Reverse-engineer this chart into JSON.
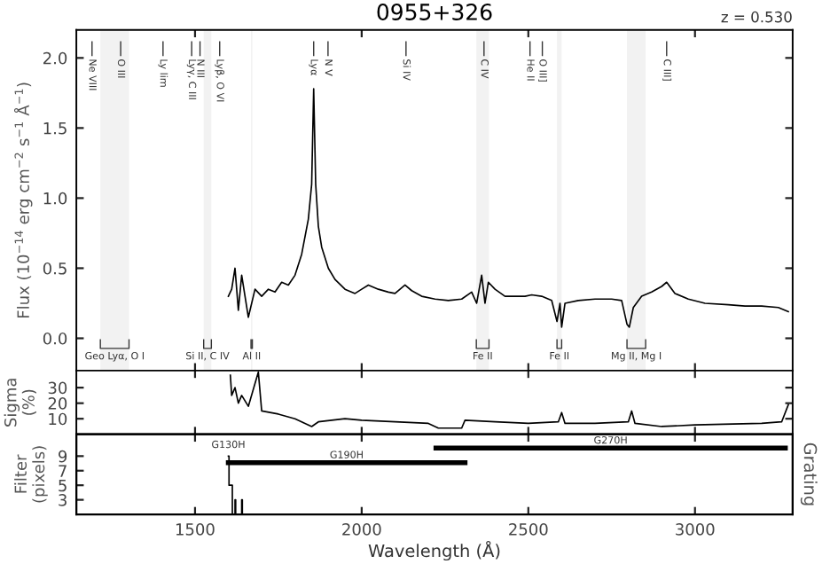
{
  "chart_data": [
    {
      "type": "line",
      "title": "0955+326",
      "ylabel": "Flux (10$^{−14}$ erg cm$^{−2}$ s$^{−1}$ Å$^{−1}$)",
      "series": [
        {
          "color": "#000000",
          "x": [
            1600,
            1610,
            1620,
            1630,
            1640,
            1650,
            1660,
            1680,
            1700,
            1720,
            1740,
            1760,
            1780,
            1800,
            1820,
            1840,
            1850,
            1856,
            1862,
            1870,
            1880,
            1900,
            1920,
            1950,
            1980,
            2000,
            2020,
            2050,
            2080,
            2100,
            2130,
            2150,
            2180,
            2220,
            2260,
            2300,
            2330,
            2345,
            2360,
            2370,
            2380,
            2400,
            2430,
            2460,
            2490,
            2510,
            2540,
            2570,
            2586,
            2595,
            2600,
            2610,
            2650,
            2700,
            2750,
            2780,
            2796,
            2803,
            2815,
            2840,
            2870,
            2900,
            2915,
            2940,
            2980,
            3030,
            3100,
            3150,
            3200,
            3250,
            3280
          ],
          "values": [
            0.3,
            0.35,
            0.5,
            0.2,
            0.45,
            0.3,
            0.15,
            0.35,
            0.3,
            0.35,
            0.33,
            0.4,
            0.38,
            0.45,
            0.6,
            0.85,
            1.1,
            1.78,
            1.1,
            0.8,
            0.65,
            0.5,
            0.42,
            0.35,
            0.32,
            0.35,
            0.38,
            0.35,
            0.33,
            0.32,
            0.38,
            0.34,
            0.3,
            0.28,
            0.27,
            0.28,
            0.33,
            0.25,
            0.45,
            0.25,
            0.4,
            0.35,
            0.3,
            0.3,
            0.3,
            0.31,
            0.3,
            0.27,
            0.12,
            0.25,
            0.08,
            0.25,
            0.27,
            0.28,
            0.28,
            0.27,
            0.1,
            0.08,
            0.22,
            0.3,
            0.33,
            0.37,
            0.4,
            0.32,
            0.28,
            0.25,
            0.24,
            0.23,
            0.23,
            0.22,
            0.19
          ]
        }
      ],
      "xlim": [
        1144,
        3293
      ],
      "xticks": [
        {
          "value": 1500,
          "label": null
        },
        {
          "value": 2000,
          "label": null
        },
        {
          "value": 2500,
          "label": null
        },
        {
          "value": 3000,
          "label": null
        }
      ],
      "ylim": [
        -0.23,
        2.2
      ],
      "yticks": [
        {
          "value": 0,
          "label": "0.0"
        },
        {
          "value": 0.5,
          "label": "0.5"
        },
        {
          "value": 1,
          "label": "1.0"
        },
        {
          "value": 1.5,
          "label": "1.5"
        },
        {
          "value": 2,
          "label": "2.0"
        }
      ],
      "tick_labels": "y",
      "annotations": [
        "z = 0.530"
      ],
      "ref_lines": [
        {
          "axis": "x",
          "value": 1191,
          "label": "Ne VIII"
        },
        {
          "axis": "x",
          "value": 1277,
          "label": "O III"
        },
        {
          "axis": "x",
          "value": 1404,
          "label": "Ly lim"
        },
        {
          "axis": "x",
          "value": 1490,
          "label": "Lyγ, C III"
        },
        {
          "axis": "x",
          "value": 1515,
          "label": "N III"
        },
        {
          "axis": "x",
          "value": 1574,
          "label": "Lyβ, O VI"
        },
        {
          "axis": "x",
          "value": 1856,
          "label": "Lyα"
        },
        {
          "axis": "x",
          "value": 1899,
          "label": "N V"
        },
        {
          "axis": "x",
          "value": 2133,
          "label": "Si IV"
        },
        {
          "axis": "x",
          "value": 2367,
          "label": "C IV"
        },
        {
          "axis": "x",
          "value": 2505,
          "label": "He II"
        },
        {
          "axis": "x",
          "value": 2542,
          "label": "O III]"
        },
        {
          "axis": "x",
          "value": 2915,
          "label": "C III]"
        }
      ],
      "bands": [
        {
          "axis": "x",
          "from": 1216,
          "to": 1302,
          "label": "Geo Lyα, O I"
        },
        {
          "axis": "x",
          "from": 1526,
          "to": 1549,
          "label": "Si II, C IV"
        },
        {
          "axis": "x",
          "from": 1668,
          "to": 1672,
          "label": "Al II"
        },
        {
          "axis": "x",
          "from": 2344,
          "to": 2382,
          "label": "Fe II"
        },
        {
          "axis": "x",
          "from": 2586,
          "to": 2600,
          "label": "Fe II"
        },
        {
          "axis": "x",
          "from": 2796,
          "to": 2852,
          "label": "Mg II, Mg I"
        }
      ]
    },
    {
      "type": "line",
      "ylabel": "Sigma\n(%)",
      "series": [
        {
          "color": "#000000",
          "x": [
            1606,
            1610,
            1620,
            1630,
            1640,
            1660,
            1690,
            1700,
            1750,
            1800,
            1850,
            1870,
            1950,
            2000,
            2100,
            2200,
            2230,
            2300,
            2310,
            2400,
            2500,
            2590,
            2600,
            2610,
            2700,
            2800,
            2810,
            2820,
            2900,
            3000,
            3200,
            3260,
            3280
          ],
          "values": [
            38,
            25,
            30,
            20,
            25,
            18,
            40,
            15,
            13,
            10,
            5,
            8,
            10,
            9,
            8,
            7,
            4,
            4,
            9,
            8,
            7,
            8,
            14,
            7,
            7,
            8,
            15,
            7,
            5,
            6,
            7,
            8,
            19
          ]
        }
      ],
      "xlim": [
        1144,
        3293
      ],
      "xticks": [
        {
          "value": 1500,
          "label": null
        },
        {
          "value": 2000,
          "label": null
        },
        {
          "value": 2500,
          "label": null
        },
        {
          "value": 3000,
          "label": null
        }
      ],
      "ylim": [
        0,
        41
      ],
      "yticks": [
        10,
        20,
        30
      ],
      "tick_labels": "y"
    },
    {
      "type": "line",
      "ylabel": "Filter\n(pixels)",
      "y2label": "Grating",
      "xlabel": "Wavelength (Å)",
      "series": [
        {
          "type": "step",
          "color": "#000000",
          "x": [
            1600,
            1602,
            1610,
            1612,
            1620,
            1622,
            1640,
            1642,
            1660
          ],
          "values": [
            9,
            5,
            5,
            1,
            3,
            1,
            3,
            1,
            1
          ]
        },
        {
          "name": "G190H",
          "color": "#000000",
          "x": [
            1600,
            2310
          ],
          "values": [
            8.1,
            8.1
          ]
        },
        {
          "name": "G270H",
          "color": "#000000",
          "x": [
            2223,
            3271
          ],
          "values": [
            10.1,
            10.1
          ]
        }
      ],
      "xlim": [
        1144,
        3293
      ],
      "xticks": [
        1500,
        2000,
        2500,
        3000
      ],
      "ylim": [
        1,
        12
      ],
      "yticks": [
        3,
        5,
        7,
        9
      ],
      "annotations": [
        {
          "text": "G130H",
          "x": 1600,
          "y": 9
        }
      ]
    }
  ]
}
